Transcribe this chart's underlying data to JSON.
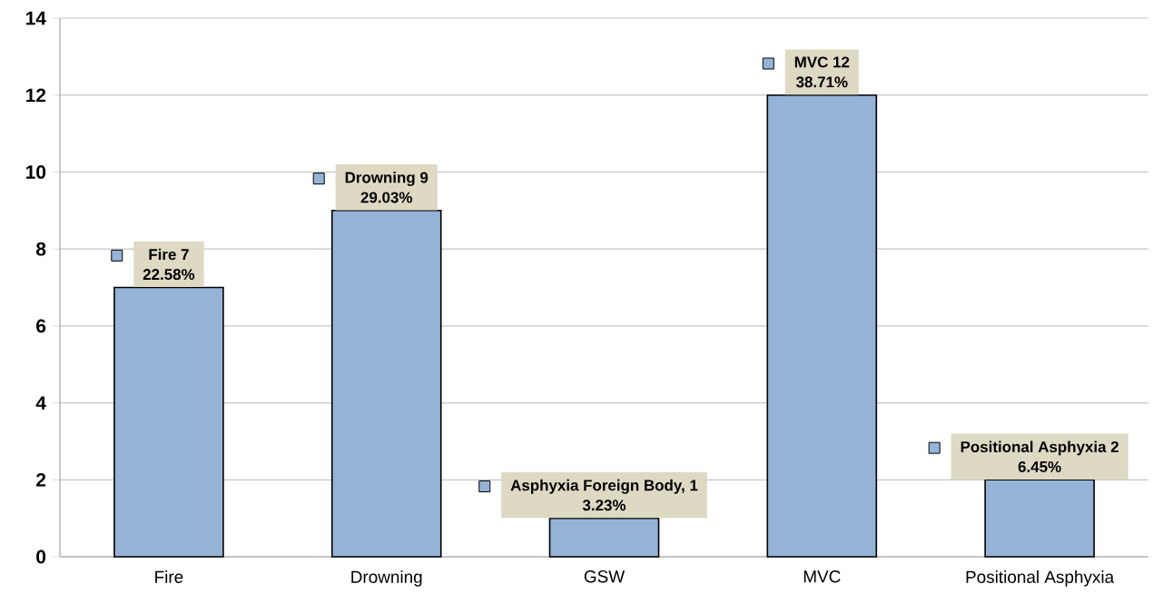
{
  "chart_data": {
    "type": "bar",
    "categories": [
      "Fire",
      "Drowning",
      "GSW",
      "MVC",
      "Positional Asphyxia"
    ],
    "values": [
      7,
      9,
      1,
      12,
      2
    ],
    "color": "#95b3d7",
    "ylim": [
      0,
      14
    ],
    "yticks": [
      0,
      2,
      4,
      6,
      8,
      10,
      12,
      14
    ],
    "grid": "y",
    "value_labels": [
      "Fire 7",
      "Drowning 9",
      "Asphyxia Foreign Body, 1",
      "MVC 12",
      "Positional Asphyxia 2"
    ],
    "annotations": [
      "22.58%",
      "29.03%",
      "3.23%",
      "38.71%",
      "6.45%"
    ]
  }
}
